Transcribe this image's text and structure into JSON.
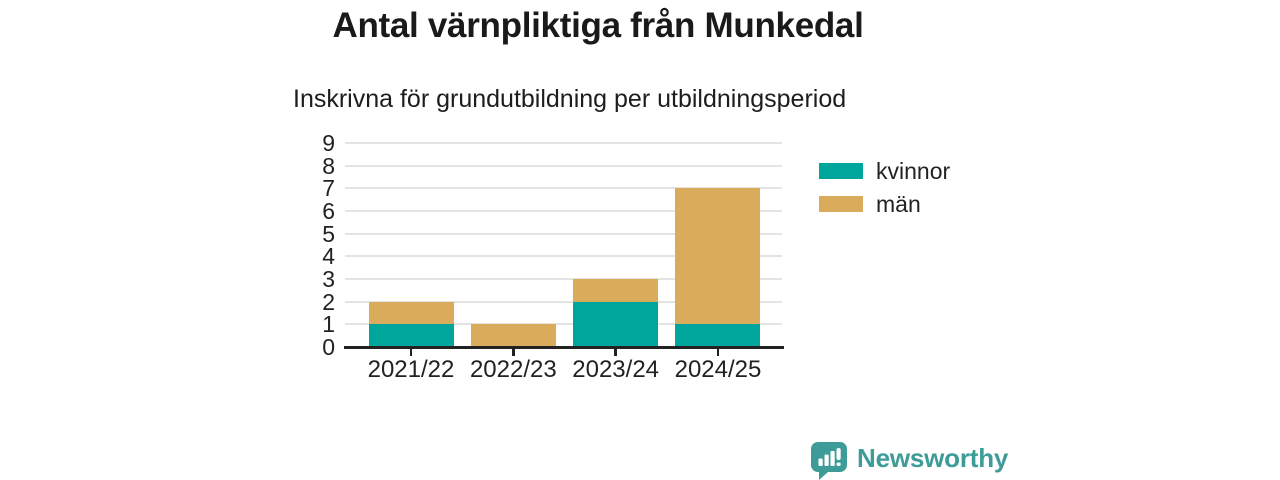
{
  "header": {
    "title": "Antal värnpliktiga från Munkedal",
    "subtitle": "Inskrivna för grundutbildning per utbildningsperiod"
  },
  "chart_data": {
    "type": "bar",
    "stacked": true,
    "title": "Antal värnpliktiga från Munkedal",
    "subtitle": "Inskrivna för grundutbildning per utbildningsperiod",
    "categories": [
      "2021/22",
      "2022/23",
      "2023/24",
      "2024/25"
    ],
    "series": [
      {
        "name": "kvinnor",
        "color": "#00a59c",
        "values": [
          1,
          0,
          2,
          1
        ]
      },
      {
        "name": "män",
        "color": "#d9ab5a",
        "values": [
          1,
          1,
          1,
          6
        ]
      }
    ],
    "totals": [
      2,
      1,
      3,
      7
    ],
    "xlabel": "",
    "ylabel": "",
    "ylim": [
      0,
      9
    ],
    "yticks": [
      0,
      1,
      2,
      3,
      4,
      5,
      6,
      7,
      8,
      9
    ],
    "grid": true,
    "legend_position": "right"
  },
  "legend": {
    "items": [
      {
        "label": "kvinnor",
        "color": "#00a59c"
      },
      {
        "label": "män",
        "color": "#d9ab5a"
      }
    ]
  },
  "footer": {
    "brand": "Newsworthy",
    "logo_icon": "bar-chart-speech-bubble-icon"
  },
  "colors": {
    "kvinnor": "#00a59c",
    "man": "#d9ab5a",
    "brand_teal": "#3d9c98",
    "axis": "#222222",
    "gridline": "#e4e4e4",
    "text": "#1a1a1a",
    "background": "#ffffff"
  }
}
